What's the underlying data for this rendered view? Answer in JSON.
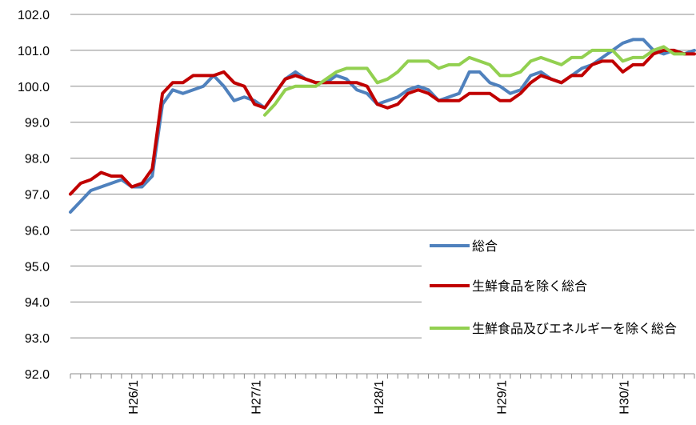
{
  "chart_data": {
    "type": "line",
    "title": "",
    "xlabel": "",
    "ylabel": "",
    "ylim": [
      92.0,
      102.0
    ],
    "y_ticks": [
      "92.0",
      "93.0",
      "94.0",
      "95.0",
      "96.0",
      "97.0",
      "98.0",
      "99.0",
      "100.0",
      "101.0",
      "102.0"
    ],
    "x_tick_labels": [
      {
        "label": "H26/1",
        "index": 6
      },
      {
        "label": "H27/1",
        "index": 18
      },
      {
        "label": "H28/1",
        "index": 30
      },
      {
        "label": "H29/1",
        "index": 42
      },
      {
        "label": "H30/1",
        "index": 54
      }
    ],
    "grid": "horizontal",
    "legend_position": "right",
    "series": [
      {
        "name": "総合",
        "color": "#4F81BD",
        "start_index": 0,
        "values": [
          96.5,
          96.8,
          97.1,
          97.2,
          97.3,
          97.4,
          97.2,
          97.2,
          97.5,
          99.5,
          99.9,
          99.8,
          99.9,
          100.0,
          100.3,
          100.0,
          99.6,
          99.7,
          99.6,
          99.4,
          99.8,
          100.2,
          100.4,
          100.2,
          100.1,
          100.1,
          100.3,
          100.2,
          99.9,
          99.8,
          99.5,
          99.6,
          99.7,
          99.9,
          100.0,
          99.9,
          99.6,
          99.7,
          99.8,
          100.4,
          100.4,
          100.1,
          100.0,
          99.8,
          99.9,
          100.3,
          100.4,
          100.2,
          100.1,
          100.3,
          100.5,
          100.6,
          100.8,
          101.0,
          101.2,
          101.3,
          101.3,
          101.0,
          100.9,
          101.0,
          100.9,
          101.0
        ]
      },
      {
        "name": "生鮮食品を除く総合",
        "color": "#C00000",
        "start_index": 0,
        "values": [
          97.0,
          97.3,
          97.4,
          97.6,
          97.5,
          97.5,
          97.2,
          97.3,
          97.7,
          99.8,
          100.1,
          100.1,
          100.3,
          100.3,
          100.3,
          100.4,
          100.1,
          100.0,
          99.5,
          99.4,
          99.8,
          100.2,
          100.3,
          100.2,
          100.1,
          100.1,
          100.1,
          100.1,
          100.1,
          100.0,
          99.5,
          99.4,
          99.5,
          99.8,
          99.9,
          99.8,
          99.6,
          99.6,
          99.6,
          99.8,
          99.8,
          99.8,
          99.6,
          99.6,
          99.8,
          100.1,
          100.3,
          100.2,
          100.1,
          100.3,
          100.3,
          100.6,
          100.7,
          100.7,
          100.4,
          100.6,
          100.6,
          100.9,
          101.0,
          101.0,
          100.9,
          100.9
        ]
      },
      {
        "name": "生鮮食品及びエネルギーを除く総合",
        "color": "#92D050",
        "start_index": 19,
        "values": [
          99.2,
          99.5,
          99.9,
          100.0,
          100.0,
          100.0,
          100.2,
          100.4,
          100.5,
          100.5,
          100.5,
          100.1,
          100.2,
          100.4,
          100.7,
          100.7,
          100.7,
          100.5,
          100.6,
          100.6,
          100.8,
          100.7,
          100.6,
          100.3,
          100.3,
          100.4,
          100.7,
          100.8,
          100.7,
          100.6,
          100.8,
          100.8,
          101.0,
          101.0,
          101.0,
          100.7,
          100.8,
          100.8,
          101.0,
          101.1,
          100.9,
          100.9
        ]
      }
    ]
  }
}
